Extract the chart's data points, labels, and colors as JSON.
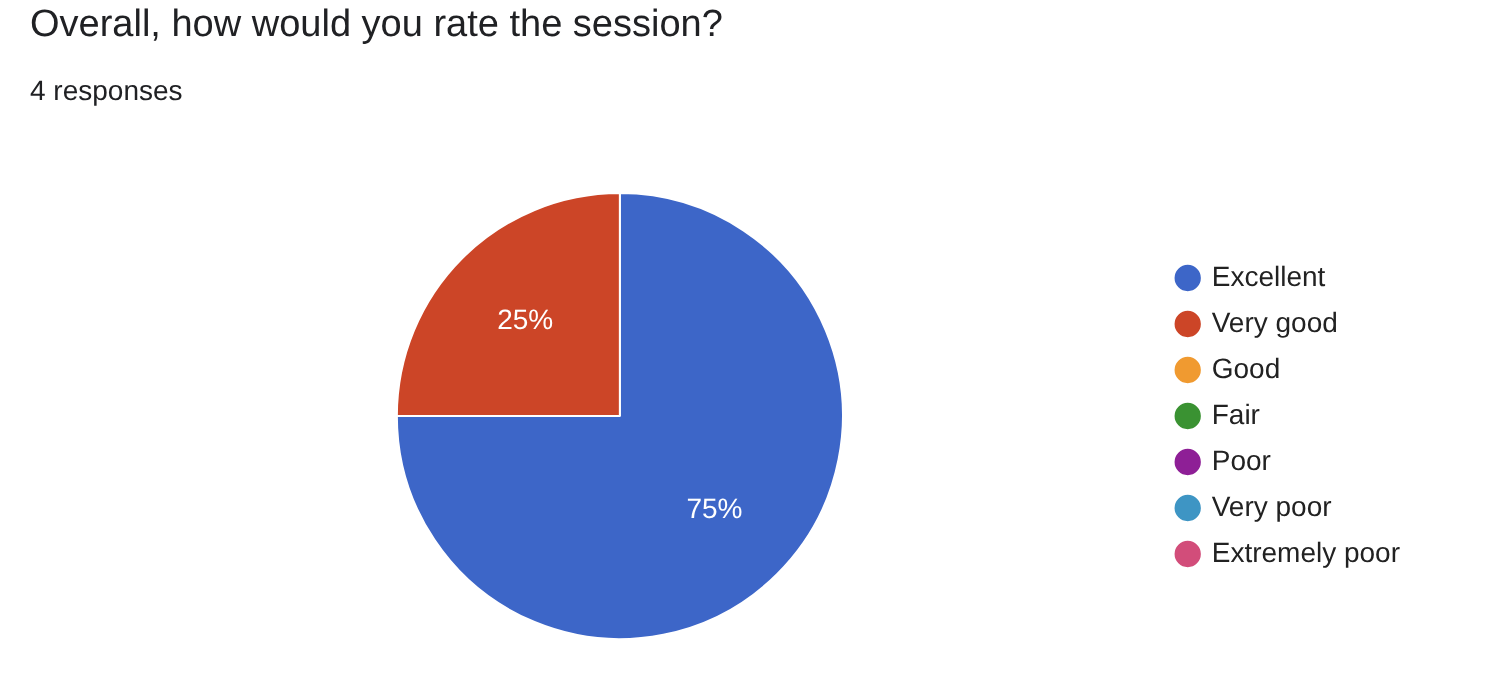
{
  "chart_data": {
    "type": "pie",
    "title": "Overall, how would you rate the session?",
    "subtitle": "4 responses",
    "categories": [
      "Excellent",
      "Very good",
      "Good",
      "Fair",
      "Poor",
      "Very poor",
      "Extremely poor"
    ],
    "values": [
      75,
      25,
      0,
      0,
      0,
      0,
      0
    ],
    "colors": [
      "#3d66c8",
      "#cc4527",
      "#f09a30",
      "#3a9232",
      "#8e1f96",
      "#3e95c4",
      "#d24d7a"
    ],
    "value_labels": [
      "75%",
      "25%",
      null,
      null,
      null,
      null,
      null
    ],
    "legend": "right"
  }
}
